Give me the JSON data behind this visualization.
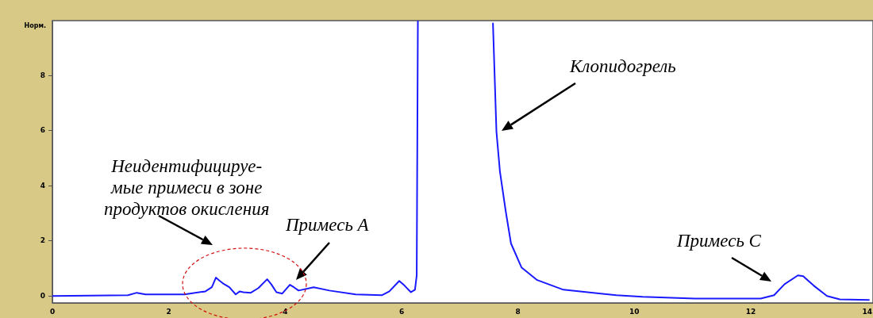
{
  "chart_data": {
    "type": "line",
    "ylabel": "Норм.",
    "xlim": [
      0,
      14.1
    ],
    "ylim": [
      -0.25,
      10
    ],
    "xticks": [
      0,
      2,
      4,
      6,
      8,
      10,
      12,
      14
    ],
    "yticks": [
      0,
      2,
      4,
      6,
      8
    ],
    "grid": false,
    "legend": false,
    "marker": "none",
    "line_style": "solid",
    "series": [
      {
        "color": "#1a1aff",
        "x": [
          0,
          1.3,
          1.45,
          1.6,
          2.27,
          2.63,
          2.74,
          2.81,
          2.86,
          2.93,
          3.04,
          3.15,
          3.22,
          3.28,
          3.41,
          3.54,
          3.69,
          3.76,
          3.85,
          3.95,
          4.08,
          4.15,
          4.23,
          4.49,
          4.76,
          5.21,
          5.66,
          5.79,
          5.96,
          6.05,
          6.16,
          6.23,
          6.26,
          6.28,
          7.0,
          7.57,
          7.63,
          7.69,
          7.79,
          7.88,
          8.06,
          8.33,
          8.78,
          9.69,
          10.14,
          11.04,
          12.17,
          12.4,
          12.58,
          12.81,
          12.9,
          13.08,
          13.31,
          13.53,
          14.03
        ],
        "values": [
          0,
          0.03,
          0.12,
          0.06,
          0.06,
          0.17,
          0.32,
          0.67,
          0.58,
          0.46,
          0.32,
          0.06,
          0.17,
          0.14,
          0.12,
          0.29,
          0.61,
          0.43,
          0.14,
          0.09,
          0.41,
          0.32,
          0.2,
          0.32,
          0.2,
          0.06,
          0.03,
          0.17,
          0.55,
          0.38,
          0.14,
          0.23,
          0.75,
          10,
          null,
          9.9,
          5.97,
          4.52,
          3.07,
          1.91,
          1.04,
          0.58,
          0.23,
          0.03,
          -0.03,
          -0.09,
          -0.09,
          0.03,
          0.43,
          0.75,
          0.72,
          0.38,
          0,
          -0.12,
          -0.14
        ]
      }
    ],
    "annotations": [
      "Клопидогрель",
      "Примесь A",
      "Примесь C",
      "Неидентифицируе-\nмые примеси в зоне\nпродуктов окисления"
    ]
  }
}
